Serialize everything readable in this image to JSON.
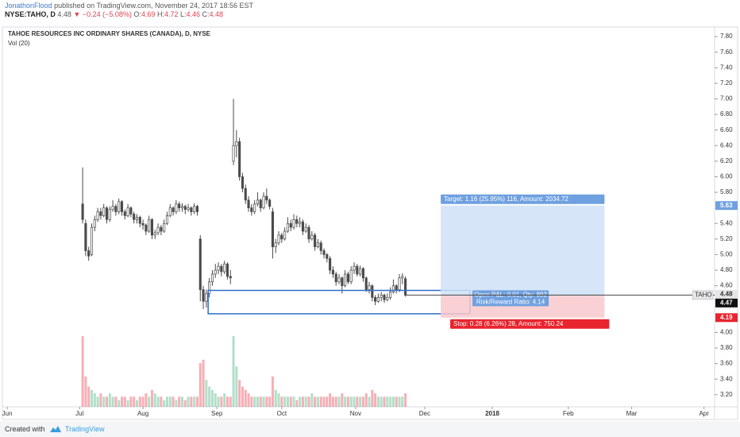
{
  "header": {
    "author": "JonathonFlood",
    "published": "published on TradingView.com, November 24, 2017 18:56 EST",
    "symbol": "NYSE:TAHO, D",
    "last": "4.48",
    "change": "▼ −0.24 (−5.08%)",
    "o_label": "O:",
    "o": "4.69",
    "h_label": "H:",
    "h": "4.72",
    "l_label": "L:",
    "l": "4.46",
    "c_label": "C:",
    "c": "4.48"
  },
  "chart_data": {
    "type": "candlestick",
    "title": "TAHOE RESOURCES INC ORDINARY SHARES (CANADA), D, NYSE",
    "volume_label": "Vol (20)",
    "open": [
      5.65,
      5.4,
      5.05,
      5.0,
      5.35,
      5.45,
      5.55,
      5.5,
      5.6,
      5.45,
      5.58,
      5.62,
      5.55,
      5.68,
      5.55,
      5.5,
      5.6,
      5.52,
      5.45,
      5.48,
      5.4,
      5.38,
      5.3,
      5.45,
      5.25,
      5.28,
      5.35,
      5.3,
      5.4,
      5.5,
      5.6,
      5.55,
      5.65,
      5.6,
      5.62,
      5.58,
      5.6,
      5.55,
      5.62,
      5.2,
      4.55,
      4.4,
      4.5,
      4.65,
      4.75,
      4.8,
      4.85,
      4.78,
      4.88,
      4.72,
      6.2,
      6.4,
      6.45,
      6.0,
      5.85,
      5.7,
      5.6,
      5.55,
      5.65,
      5.7,
      5.6,
      5.75,
      5.7,
      5.55,
      5.1,
      5.15,
      5.25,
      5.2,
      5.3,
      5.4,
      5.35,
      5.45,
      5.4,
      5.42,
      5.3,
      5.35,
      5.2,
      5.25,
      5.1,
      5.15,
      5.05,
      5.0,
      4.95,
      4.8,
      4.75,
      4.65,
      4.7,
      4.6,
      4.75,
      4.65,
      4.8,
      4.85,
      4.75,
      4.82,
      4.7,
      4.55,
      4.6,
      4.45,
      4.4,
      4.45,
      4.48,
      4.42,
      4.45,
      4.52,
      4.6,
      4.55,
      4.7,
      4.69
    ],
    "high": [
      6.12,
      5.45,
      5.1,
      5.4,
      5.5,
      5.6,
      5.6,
      5.65,
      5.62,
      5.62,
      5.7,
      5.65,
      5.72,
      5.7,
      5.58,
      5.65,
      5.62,
      5.55,
      5.52,
      5.5,
      5.45,
      5.4,
      5.5,
      5.47,
      5.32,
      5.4,
      5.38,
      5.45,
      5.55,
      5.65,
      5.62,
      5.7,
      5.68,
      5.66,
      5.64,
      5.65,
      5.62,
      5.66,
      5.64,
      5.25,
      4.6,
      4.55,
      4.7,
      4.8,
      4.88,
      4.9,
      4.88,
      4.92,
      4.9,
      4.8,
      7.0,
      6.6,
      6.5,
      6.05,
      5.9,
      5.75,
      5.65,
      5.7,
      5.8,
      5.72,
      5.8,
      5.85,
      5.72,
      5.6,
      5.2,
      5.3,
      5.28,
      5.35,
      5.48,
      5.45,
      5.52,
      5.5,
      5.48,
      5.45,
      5.4,
      5.38,
      5.3,
      5.28,
      5.2,
      5.18,
      5.08,
      5.02,
      4.98,
      4.85,
      4.78,
      4.75,
      4.72,
      4.8,
      4.78,
      4.85,
      4.9,
      4.88,
      4.86,
      4.84,
      4.72,
      4.65,
      4.62,
      4.48,
      4.5,
      4.52,
      4.5,
      4.5,
      4.58,
      4.68,
      4.62,
      4.75,
      4.76,
      4.72
    ],
    "low": [
      5.4,
      4.98,
      4.92,
      4.98,
      5.3,
      5.42,
      5.45,
      5.48,
      5.4,
      5.42,
      5.55,
      5.5,
      5.52,
      5.5,
      5.45,
      5.48,
      5.48,
      5.4,
      5.4,
      5.35,
      5.32,
      5.25,
      5.28,
      5.2,
      5.2,
      5.25,
      5.25,
      5.28,
      5.38,
      5.48,
      5.5,
      5.52,
      5.55,
      5.55,
      5.52,
      5.55,
      5.5,
      5.52,
      5.5,
      4.4,
      4.3,
      4.32,
      4.45,
      4.6,
      4.7,
      4.75,
      4.72,
      4.75,
      4.68,
      4.62,
      6.15,
      6.25,
      5.95,
      5.8,
      5.65,
      5.55,
      5.5,
      5.52,
      5.62,
      5.55,
      5.58,
      5.65,
      5.58,
      4.95,
      5.02,
      5.12,
      5.15,
      5.18,
      5.28,
      5.3,
      5.32,
      5.35,
      5.35,
      5.25,
      5.28,
      5.15,
      5.18,
      5.05,
      5.08,
      5.0,
      4.95,
      4.9,
      4.75,
      4.7,
      4.6,
      4.62,
      4.5,
      4.58,
      4.62,
      4.62,
      4.75,
      4.72,
      4.72,
      4.65,
      4.52,
      4.5,
      4.4,
      4.35,
      4.38,
      4.4,
      4.38,
      4.4,
      4.42,
      4.5,
      4.5,
      4.52,
      4.62,
      4.46
    ],
    "close": [
      5.45,
      5.05,
      4.98,
      5.35,
      5.45,
      5.55,
      5.5,
      5.6,
      5.45,
      5.58,
      5.62,
      5.55,
      5.68,
      5.55,
      5.5,
      5.6,
      5.52,
      5.45,
      5.48,
      5.4,
      5.38,
      5.3,
      5.45,
      5.25,
      5.28,
      5.35,
      5.3,
      5.4,
      5.5,
      5.6,
      5.55,
      5.65,
      5.6,
      5.62,
      5.58,
      5.6,
      5.55,
      5.62,
      5.55,
      4.55,
      4.4,
      4.5,
      4.65,
      4.75,
      4.8,
      4.85,
      4.78,
      4.88,
      4.72,
      4.7,
      6.4,
      6.45,
      6.0,
      5.85,
      5.7,
      5.6,
      5.55,
      5.65,
      5.7,
      5.6,
      5.75,
      5.7,
      5.62,
      5.1,
      5.15,
      5.25,
      5.2,
      5.3,
      5.4,
      5.35,
      5.45,
      5.4,
      5.42,
      5.3,
      5.35,
      5.2,
      5.25,
      5.1,
      5.15,
      5.05,
      5.0,
      4.95,
      4.8,
      4.75,
      4.65,
      4.7,
      4.6,
      4.75,
      4.65,
      4.8,
      4.85,
      4.75,
      4.82,
      4.7,
      4.55,
      4.6,
      4.45,
      4.4,
      4.45,
      4.48,
      4.42,
      4.45,
      4.52,
      4.6,
      4.55,
      4.7,
      4.72,
      4.48
    ],
    "volume": [
      21,
      9,
      6,
      5,
      4,
      3,
      4,
      3,
      3,
      4,
      3,
      3,
      2,
      3,
      3,
      2,
      3,
      3,
      2,
      3,
      3,
      4,
      3,
      5,
      4,
      3,
      3,
      2,
      3,
      3,
      3,
      2,
      3,
      3,
      2,
      3,
      3,
      3,
      3,
      13,
      14,
      8,
      6,
      5,
      4,
      3,
      3,
      4,
      3,
      3,
      21,
      12,
      8,
      6,
      5,
      4,
      3,
      3,
      3,
      3,
      3,
      3,
      3,
      9,
      5,
      4,
      3,
      3,
      3,
      3,
      3,
      2,
      3,
      3,
      3,
      3,
      4,
      3,
      3,
      3,
      3,
      3,
      4,
      3,
      3,
      3,
      4,
      3,
      3,
      3,
      3,
      3,
      3,
      3,
      4,
      3,
      5,
      4,
      3,
      3,
      3,
      3,
      3,
      3,
      3,
      3,
      3,
      4
    ],
    "ylim": [
      3.045,
      7.923
    ],
    "yticks": [
      {
        "value": 7.8,
        "label": "7.80"
      },
      {
        "value": 7.6,
        "label": "7.60"
      },
      {
        "value": 7.4,
        "label": "7.40"
      },
      {
        "value": 7.2,
        "label": "7.20"
      },
      {
        "value": 7,
        "label": "7.00"
      },
      {
        "value": 6.8,
        "label": "6.80"
      },
      {
        "value": 6.6,
        "label": "6.60"
      },
      {
        "value": 6.4,
        "label": "6.40"
      },
      {
        "value": 6.2,
        "label": "6.20"
      },
      {
        "value": 6,
        "label": "6.00"
      },
      {
        "value": 5.8,
        "label": "5.80"
      },
      {
        "value": 5.4,
        "label": "5.40"
      },
      {
        "value": 5.2,
        "label": "5.20"
      },
      {
        "value": 5,
        "label": "5.00"
      },
      {
        "value": 4.8,
        "label": "4.80"
      },
      {
        "value": 4.6,
        "label": "4.60"
      },
      {
        "value": 4,
        "label": "4.00"
      },
      {
        "value": 3.8,
        "label": "3.80"
      },
      {
        "value": 3.6,
        "label": "3.60"
      },
      {
        "value": 3.4,
        "label": "3.40"
      },
      {
        "value": 3.2,
        "label": "3.20"
      }
    ],
    "vlim": [
      0,
      30
    ],
    "xlim": [
      -27.4,
      209.5
    ],
    "xticks": [
      {
        "value": -25,
        "label": "Jun"
      },
      {
        "value": -1,
        "label": "Jul"
      },
      {
        "value": 20,
        "label": "Aug"
      },
      {
        "value": 44.5,
        "label": "Sep"
      },
      {
        "value": 66,
        "label": "Oct"
      },
      {
        "value": 90.5,
        "label": "Nov"
      },
      {
        "value": 113.4,
        "label": "Dec"
      },
      {
        "value": 135.8,
        "label": "2018"
      },
      {
        "value": 161,
        "label": "Feb"
      },
      {
        "value": 182,
        "label": "Mar"
      },
      {
        "value": 206,
        "label": "Apr"
      }
    ],
    "candle_color": "#4a4a4a",
    "up_color": "#53b987",
    "down_color": "#eb4d5c",
    "symbol_tag": "TAHO",
    "last_price": 4.48,
    "position": {
      "entry": 4.47,
      "target": 5.63,
      "stop": 4.19,
      "start": 118.7,
      "end": 173,
      "target_text": "Target: 1.16 (25.95%) 116, Amount: 2034.72",
      "pnl_text": "Open P&L: 0.01, Qty: 892",
      "ratio_text": "Risk/Reward Ratio: 4.14",
      "stop_text": "Stop: 0.28 (6.26%) 28, Amount: 750.24"
    },
    "rectangle": {
      "top": 4.54,
      "bottom": 4.24,
      "start": 41.6,
      "end": 128.4
    }
  },
  "footer": {
    "created": "Created with",
    "brand": "TradingView"
  }
}
